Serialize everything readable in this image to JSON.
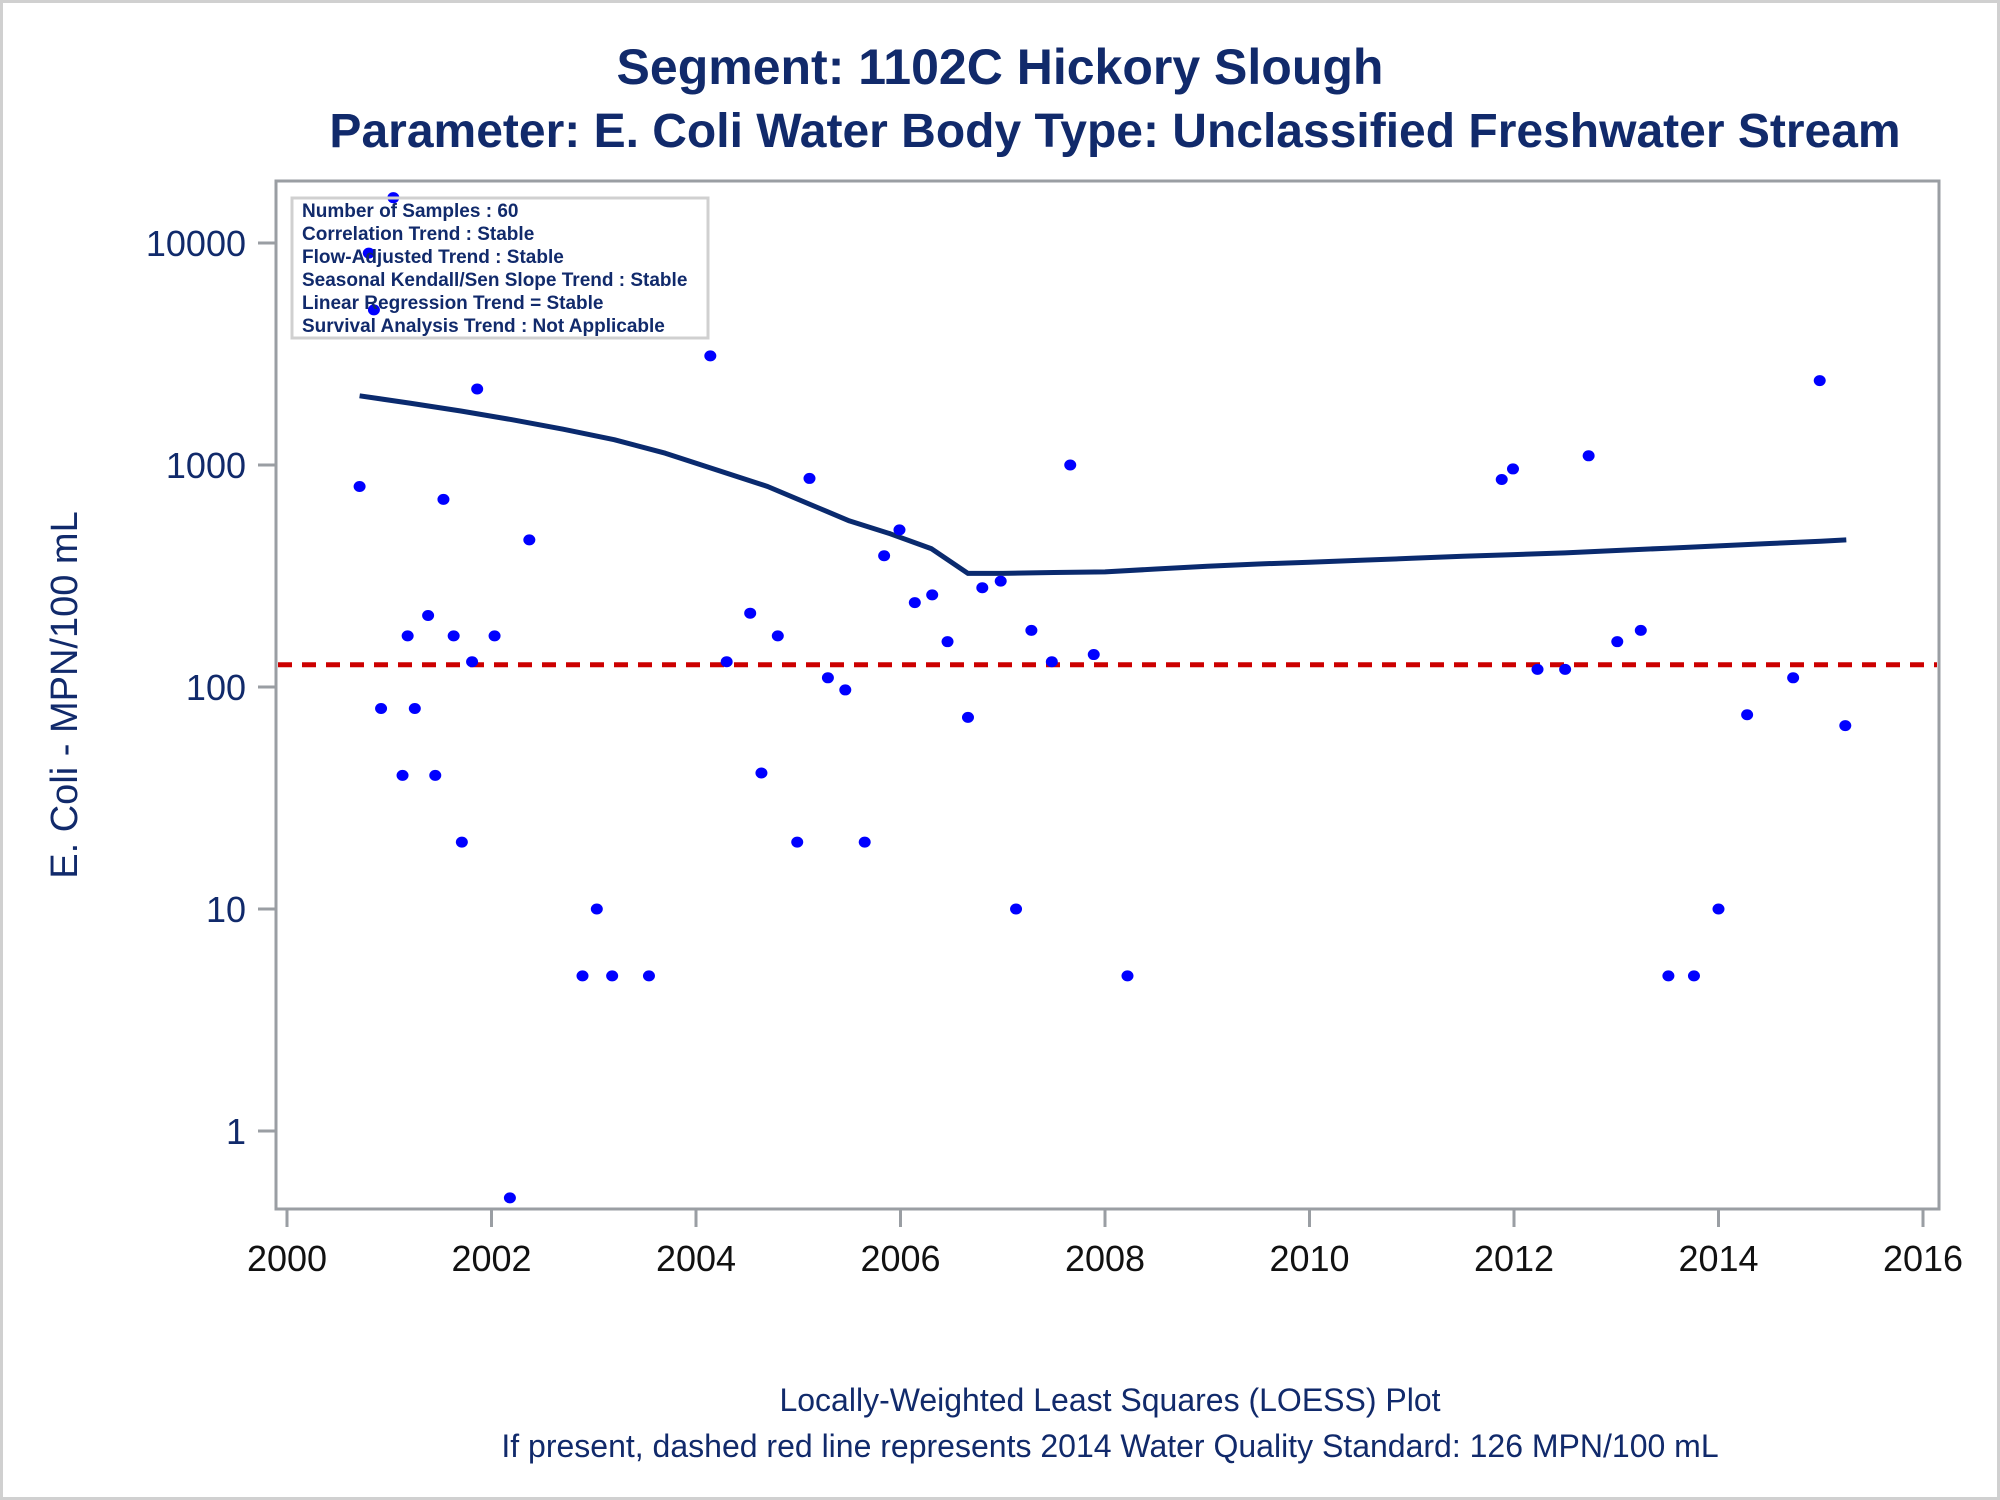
{
  "chart_data": {
    "type": "scatter",
    "title": "Segment: 1102C  Hickory Slough",
    "subtitle": "Parameter: E. Coli   Water Body Type: Unclassified Freshwater Stream",
    "xlabel": "",
    "ylabel": "E. Coli - MPN/100 mL",
    "yscale": "log",
    "xlim": [
      2000,
      2016
    ],
    "ylim": [
      0.45,
      20000
    ],
    "x_ticks": [
      2000,
      2002,
      2004,
      2006,
      2008,
      2010,
      2012,
      2014,
      2016
    ],
    "y_ticks": [
      1,
      10,
      100,
      1000,
      10000
    ],
    "grid": false,
    "colors": {
      "points": "#0000ff",
      "loess": "#0a2a6e",
      "standard": "#cc0000",
      "text": "#112a6b",
      "axis": "#9a9ea3"
    },
    "legend": {
      "placement": "top-left",
      "lines": [
        "Number of Samples : 60",
        "Correlation Trend : Stable",
        "Flow-Adjusted Trend : Stable",
        "Seasonal Kendall/Sen Slope Trend : Stable",
        "Linear Regression Trend = Stable",
        "Survival Analysis Trend : Not Applicable"
      ]
    },
    "standard_line": {
      "value": 126,
      "label": "2014 Water Quality Standard: 126 MPN/100 mL",
      "style": "dashed"
    },
    "series": [
      {
        "name": "E. Coli samples",
        "kind": "scatter",
        "points": [
          [
            2000.71,
            800
          ],
          [
            2000.8,
            9000
          ],
          [
            2000.85,
            5000
          ],
          [
            2000.92,
            80
          ],
          [
            2001.04,
            16000
          ],
          [
            2001.13,
            40
          ],
          [
            2001.18,
            170
          ],
          [
            2001.25,
            80
          ],
          [
            2001.38,
            210
          ],
          [
            2001.45,
            40
          ],
          [
            2001.53,
            700
          ],
          [
            2001.63,
            170
          ],
          [
            2001.71,
            20
          ],
          [
            2001.81,
            130
          ],
          [
            2001.86,
            2200
          ],
          [
            2002.03,
            170
          ],
          [
            2002.18,
            0.5
          ],
          [
            2002.37,
            460
          ],
          [
            2002.89,
            5
          ],
          [
            2003.03,
            10
          ],
          [
            2003.18,
            5
          ],
          [
            2003.54,
            5
          ],
          [
            2004.14,
            3100
          ],
          [
            2004.3,
            130
          ],
          [
            2004.53,
            215
          ],
          [
            2004.64,
            41
          ],
          [
            2004.8,
            170
          ],
          [
            2004.99,
            20
          ],
          [
            2005.11,
            870
          ],
          [
            2005.29,
            110
          ],
          [
            2005.46,
            97
          ],
          [
            2005.65,
            20
          ],
          [
            2005.84,
            390
          ],
          [
            2005.99,
            510
          ],
          [
            2006.14,
            240
          ],
          [
            2006.31,
            260
          ],
          [
            2006.46,
            160
          ],
          [
            2006.66,
            73
          ],
          [
            2006.8,
            280
          ],
          [
            2006.98,
            300
          ],
          [
            2007.13,
            10
          ],
          [
            2007.28,
            180
          ],
          [
            2007.48,
            130
          ],
          [
            2007.66,
            1000
          ],
          [
            2007.89,
            140
          ],
          [
            2008.22,
            5
          ],
          [
            2011.88,
            860
          ],
          [
            2011.99,
            960
          ],
          [
            2012.23,
            120
          ],
          [
            2012.5,
            120
          ],
          [
            2012.73,
            1100
          ],
          [
            2013.01,
            160
          ],
          [
            2013.24,
            180
          ],
          [
            2013.51,
            5
          ],
          [
            2013.76,
            5
          ],
          [
            2014.0,
            10
          ],
          [
            2014.28,
            75
          ],
          [
            2014.73,
            110
          ],
          [
            2014.99,
            2400
          ],
          [
            2015.24,
            67
          ]
        ]
      },
      {
        "name": "LOESS fit",
        "kind": "line",
        "points": [
          [
            2000.71,
            2050
          ],
          [
            2001.2,
            1900
          ],
          [
            2001.7,
            1750
          ],
          [
            2002.2,
            1600
          ],
          [
            2002.7,
            1450
          ],
          [
            2003.2,
            1300
          ],
          [
            2003.7,
            1130
          ],
          [
            2004.2,
            950
          ],
          [
            2004.7,
            800
          ],
          [
            2005.2,
            640
          ],
          [
            2005.5,
            560
          ],
          [
            2005.9,
            490
          ],
          [
            2006.3,
            420
          ],
          [
            2006.66,
            325
          ],
          [
            2007.0,
            325
          ],
          [
            2007.5,
            328
          ],
          [
            2008.0,
            330
          ],
          [
            2008.5,
            340
          ],
          [
            2009.0,
            350
          ],
          [
            2009.5,
            358
          ],
          [
            2010.0,
            365
          ],
          [
            2010.5,
            372
          ],
          [
            2011.0,
            380
          ],
          [
            2011.5,
            388
          ],
          [
            2012.0,
            395
          ],
          [
            2012.5,
            402
          ],
          [
            2013.0,
            412
          ],
          [
            2013.5,
            422
          ],
          [
            2014.0,
            432
          ],
          [
            2014.5,
            443
          ],
          [
            2015.0,
            453
          ],
          [
            2015.25,
            460
          ]
        ]
      }
    ],
    "footnotes": [
      "Locally-Weighted Least Squares (LOESS) Plot",
      "If present, dashed red line represents 2014 Water Quality Standard: 126 MPN/100 mL"
    ]
  }
}
